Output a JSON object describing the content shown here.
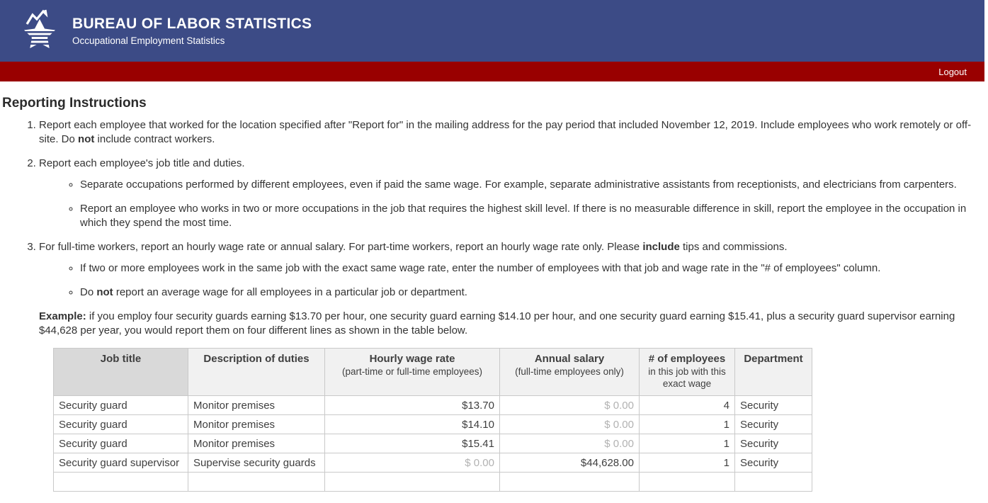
{
  "header": {
    "title": "BUREAU OF LABOR STATISTICS",
    "subtitle": "Occupational Employment Statistics",
    "logout_label": "Logout",
    "banner_color": "#3c4b86",
    "logout_bar_color": "#990000"
  },
  "page": {
    "title": "Reporting Instructions"
  },
  "instructions": {
    "item1": {
      "pre": "Report each employee that worked for the location specified after \"Report for\" in the mailing address for the pay period that included November 12, 2019. Include employees who work remotely or off-site. Do ",
      "bold": "not",
      "post": " include contract workers."
    },
    "item2": {
      "text": "Report each employee's job title and duties.",
      "sub1": "Separate occupations performed by different employees, even if paid the same wage. For example, separate administrative assistants from receptionists, and electricians from carpenters.",
      "sub2": "Report an employee who works in two or more occupations in the job that requires the highest skill level. If there is no measurable difference in skill, report the employee in the occupation in which they spend the most time."
    },
    "item3": {
      "pre": "For full-time workers, report an hourly wage rate or annual salary. For part-time workers, report an hourly wage rate only. Please ",
      "bold": "include",
      "post": " tips and commissions.",
      "sub1": "If two or more employees work in the same job with the exact same wage rate, enter the number of employees with that job and wage rate in the \"# of employees\" column.",
      "sub2_pre": "Do ",
      "sub2_bold": "not",
      "sub2_post": " report an average wage for all employees in a particular job or department."
    }
  },
  "example": {
    "label": "Example:",
    "text": " if you employ four security guards earning $13.70 per hour, one security guard earning $14.10 per hour, and one security guard earning $15.41, plus a security guard supervisor earning $44,628 per year, you would report them on four different lines as shown in the table below."
  },
  "table": {
    "header": {
      "job_title": "Job title",
      "duties": "Description of duties",
      "hourly_main": "Hourly wage rate",
      "hourly_sub": "(part-time or full-time employees)",
      "annual_main": "Annual salary",
      "annual_sub": "(full-time employees only)",
      "employees_main": "# of employees",
      "employees_sub": "in this job with this exact wage",
      "department": "Department"
    },
    "column_keys": [
      "job-title",
      "duties",
      "hourly-wage",
      "annual-salary",
      "employee-count",
      "department"
    ],
    "align": [
      "left",
      "left",
      "right",
      "right",
      "right",
      "left"
    ],
    "rows": [
      [
        "Security guard",
        "Monitor premises",
        "$13.70",
        "$ 0.00",
        "4",
        "Security"
      ],
      [
        "Security guard",
        "Monitor premises",
        "$14.10",
        "$ 0.00",
        "1",
        "Security"
      ],
      [
        "Security guard",
        "Monitor premises",
        "$15.41",
        "$ 0.00",
        "1",
        "Security"
      ],
      [
        "Security guard supervisor",
        "Supervise security guards",
        "$ 0.00",
        "$44,628.00",
        "1",
        "Security"
      ],
      [
        "",
        "",
        "",
        "",
        "",
        ""
      ]
    ],
    "muted_cells": [
      [
        3
      ],
      [
        3
      ],
      [
        3
      ],
      [
        2
      ],
      []
    ]
  }
}
